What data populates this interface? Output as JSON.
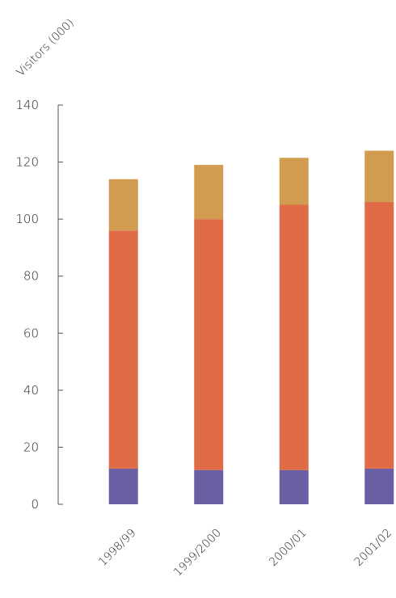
{
  "chart_data": {
    "type": "bar",
    "stacked": true,
    "categories": [
      "1998/99",
      "1999/2000",
      "2000/01",
      "2001/02"
    ],
    "series": [
      {
        "color": "#6b5fa3",
        "values": [
          12.5,
          12,
          12,
          12.5
        ]
      },
      {
        "color": "#e06c47",
        "values": [
          83.5,
          88,
          93,
          93.5
        ]
      },
      {
        "color": "#d19c50",
        "values": [
          18,
          19,
          16.5,
          18
        ]
      }
    ],
    "ylabel": "Visitors (000)",
    "ylim": [
      0,
      140
    ],
    "yticks": [
      "0",
      "20",
      "40",
      "60",
      "80",
      "100",
      "120",
      "140"
    ],
    "grid": false
  }
}
